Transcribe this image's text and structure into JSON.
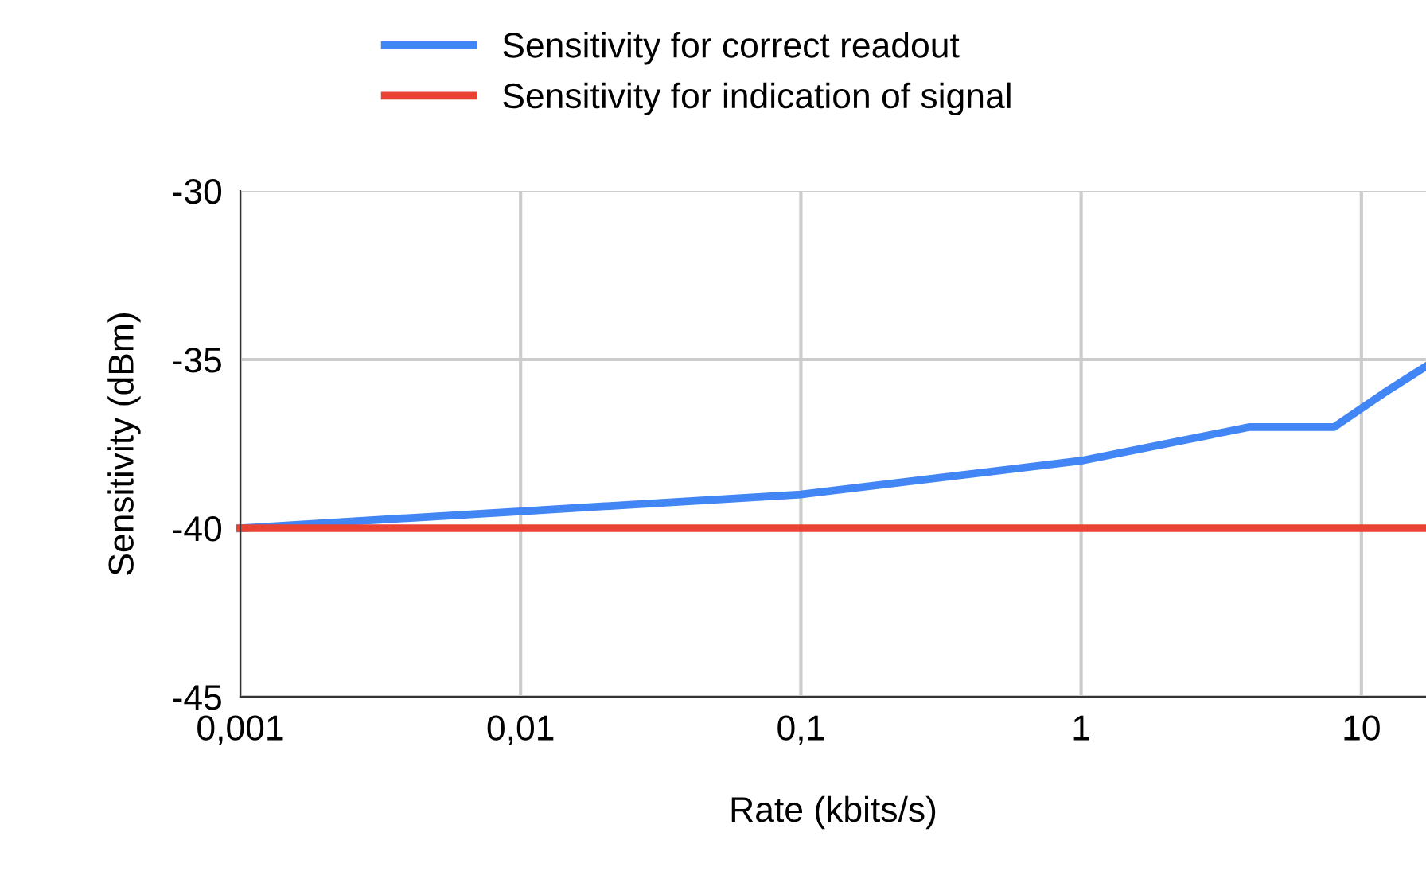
{
  "chart_data": {
    "type": "line",
    "xlabel": "Rate (kbits/s)",
    "ylabel": "Sensitivity (dBm)",
    "log": "x",
    "xlim": [
      0.001,
      17
    ],
    "xticks": [
      {
        "value": 0.001,
        "label": "0,001"
      },
      {
        "value": 0.01,
        "label": "0,01"
      },
      {
        "value": 0.1,
        "label": "0,1"
      },
      1,
      10
    ],
    "ylim": [
      -45,
      -30
    ],
    "yticks": [
      -45,
      -40,
      -35,
      -30
    ],
    "grid": true,
    "legend": "top",
    "marker": "none",
    "line_style": "solid",
    "series": [
      {
        "name": "Sensitivity for correct readout",
        "color": "#4285f4",
        "x": [
          0.001,
          0.01,
          0.1,
          1,
          4,
          8,
          12,
          17
        ],
        "values": [
          -40,
          -39.5,
          -39,
          -38,
          -37,
          -37,
          -36,
          -35.2
        ]
      },
      {
        "name": "Sensitivity for indication of signal",
        "color": "#ea4335",
        "x": [
          0.001,
          17
        ],
        "values": [
          -40,
          -40
        ]
      }
    ]
  }
}
